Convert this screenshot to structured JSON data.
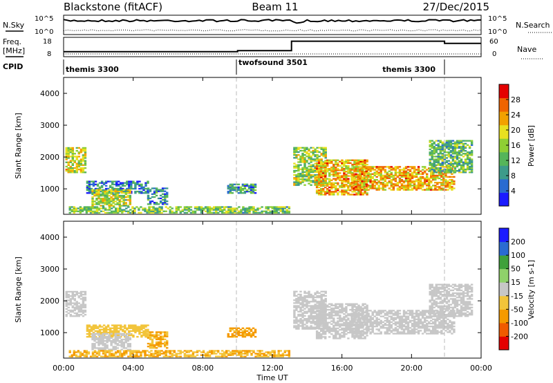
{
  "header": {
    "title": "Blackstone (fitACF)",
    "beam": "Beam 11",
    "date": "27/Dec/2015"
  },
  "sky_panel": {
    "left_label": "N.Sky",
    "right_label": "N.Search",
    "tick_top": "10^5",
    "tick_bottom": "10^0",
    "sky_level": 0.72,
    "search_level": 0.22
  },
  "freq_panel": {
    "left_label_1": "Freq.",
    "left_label_2": "[MHz]",
    "right_label": "Nave",
    "left_ticks": [
      "18",
      "8"
    ],
    "right_ticks": [
      "60",
      "0"
    ],
    "freq_segments": [
      {
        "t0": 0,
        "t1": 10.0,
        "mhz": 10.2
      },
      {
        "t0": 10.0,
        "t1": 13.1,
        "mhz": 10.8
      },
      {
        "t0": 13.1,
        "t1": 21.9,
        "mhz": 16.5
      },
      {
        "t0": 21.9,
        "t1": 24.0,
        "mhz": 15.2
      }
    ]
  },
  "cpid_panel": {
    "label": "CPID",
    "segments": [
      {
        "name": "themis 3300",
        "t0": 0,
        "t1": 10.0,
        "align": "left"
      },
      {
        "name": "twofsound 3501",
        "t0": 10.0,
        "t1": 21.9,
        "align": "left"
      },
      {
        "name": "themis 3300",
        "t0": 10.0,
        "t1": 21.9,
        "align": "right"
      }
    ]
  },
  "chart_data": [
    {
      "type": "heatmap",
      "quantity": "power",
      "ylabel": "Slant Range [km]",
      "xlabel": "",
      "xlim": [
        0,
        24
      ],
      "ylim": [
        200,
        4500
      ],
      "yticks": [
        1000,
        2000,
        3000,
        4000
      ],
      "colorbar_label": "Power [dB]",
      "colorbar_ticks": [
        "28",
        "24",
        "20",
        "16",
        "12",
        "8",
        "4"
      ],
      "colorbar_range": [
        0,
        32
      ],
      "colors": [
        "#1b1bff",
        "#2a6bd1",
        "#3d9b8a",
        "#55b55a",
        "#8fcf35",
        "#e8e020",
        "#f2a100",
        "#f06400",
        "#e40000"
      ],
      "regions": [
        {
          "t": [
            0.1,
            1.2
          ],
          "r": [
            1500,
            2300
          ],
          "v": 18
        },
        {
          "t": [
            1.3,
            4.8
          ],
          "r": [
            850,
            1250
          ],
          "v": 7
        },
        {
          "t": [
            1.6,
            3.8
          ],
          "r": [
            450,
            950
          ],
          "v": 17
        },
        {
          "t": [
            4.8,
            6.0
          ],
          "r": [
            500,
            1000
          ],
          "v": 8
        },
        {
          "t": [
            9.4,
            11.0
          ],
          "r": [
            850,
            1150
          ],
          "v": 9
        },
        {
          "t": [
            0.3,
            13.0
          ],
          "r": [
            230,
            420
          ],
          "v": 14
        },
        {
          "t": [
            13.2,
            15.0
          ],
          "r": [
            1100,
            2300
          ],
          "v": 16
        },
        {
          "t": [
            14.5,
            17.5
          ],
          "r": [
            800,
            1900
          ],
          "v": 22
        },
        {
          "t": [
            16.5,
            22.5
          ],
          "r": [
            950,
            1700
          ],
          "v": 22
        },
        {
          "t": [
            21.0,
            23.5
          ],
          "r": [
            1500,
            2500
          ],
          "v": 13
        }
      ]
    },
    {
      "type": "heatmap",
      "quantity": "velocity",
      "ylabel": "Slant Range [km]",
      "xlabel": "Time UT",
      "xlim": [
        0,
        24
      ],
      "ylim": [
        200,
        4500
      ],
      "yticks": [
        1000,
        2000,
        3000,
        4000
      ],
      "xticks": [
        "00:00",
        "04:00",
        "08:00",
        "12:00",
        "16:00",
        "20:00",
        "00:00"
      ],
      "colorbar_label": "Velocity [m s-1]",
      "colorbar_ticks": [
        "200",
        "100",
        "50",
        "15",
        "-15",
        "-50",
        "-100",
        "-200"
      ],
      "colorbar_range": [
        -250,
        250
      ],
      "colors": [
        "#e40000",
        "#f05a00",
        "#f59a00",
        "#f2c43a",
        "#c7c7c7",
        "#8fd16a",
        "#3fa13a",
        "#2a6bd1",
        "#1b1bff"
      ],
      "regions": [
        {
          "t": [
            0.1,
            1.2
          ],
          "r": [
            1500,
            2300
          ],
          "v": 0
        },
        {
          "t": [
            1.3,
            4.8
          ],
          "r": [
            850,
            1250
          ],
          "v": -60
        },
        {
          "t": [
            1.6,
            3.8
          ],
          "r": [
            450,
            950
          ],
          "v": 0
        },
        {
          "t": [
            4.8,
            6.0
          ],
          "r": [
            500,
            1000
          ],
          "v": -80
        },
        {
          "t": [
            9.4,
            11.0
          ],
          "r": [
            850,
            1150
          ],
          "v": -90
        },
        {
          "t": [
            0.3,
            13.0
          ],
          "r": [
            230,
            420
          ],
          "v": -80
        },
        {
          "t": [
            13.2,
            15.0
          ],
          "r": [
            1100,
            2300
          ],
          "v": 0
        },
        {
          "t": [
            14.5,
            17.5
          ],
          "r": [
            800,
            1900
          ],
          "v": 0
        },
        {
          "t": [
            16.5,
            22.5
          ],
          "r": [
            950,
            1700
          ],
          "v": 0
        },
        {
          "t": [
            21.0,
            23.5
          ],
          "r": [
            1500,
            2500
          ],
          "v": 0
        }
      ]
    }
  ]
}
